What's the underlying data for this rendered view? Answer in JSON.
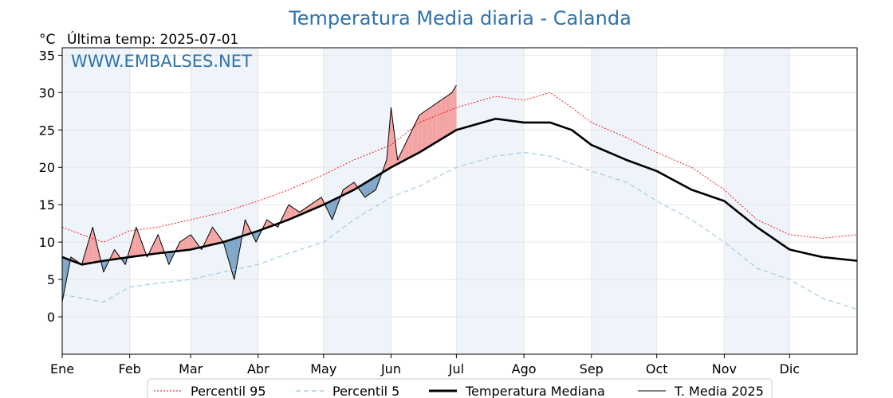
{
  "chart_data": {
    "type": "line",
    "title": "Temperatura Media diaria - Calanda",
    "unit_label": "°C",
    "last_temp_label": "Última temp: 2025-07-01",
    "watermark": "WWW.EMBALSES.NET",
    "ylim": [
      -5,
      36
    ],
    "yticks": [
      "35",
      "30",
      "25",
      "20",
      "15",
      "10",
      "5",
      "0"
    ],
    "yvalues": [
      35,
      30,
      25,
      20,
      15,
      10,
      5,
      0
    ],
    "xlim": [
      1,
      366
    ],
    "month_labels": [
      "Ene",
      "Feb",
      "Mar",
      "Abr",
      "May",
      "Jun",
      "Jul",
      "Ago",
      "Sep",
      "Oct",
      "Nov",
      "Dic"
    ],
    "month_starts": [
      1,
      32,
      60,
      91,
      121,
      152,
      182,
      213,
      244,
      274,
      305,
      335
    ],
    "grid": true,
    "legend_position": "bottom",
    "colors": {
      "p95": "#ff0000",
      "p5": "#a6d1e3",
      "median": "#000000",
      "current": "#000000",
      "warm_fill": "#f4a3a3",
      "cool_fill": "#7fa6c8",
      "shade": "#eef4fa"
    },
    "series": [
      {
        "name": "Percentil 95",
        "style": "dotted",
        "x": [
          1,
          10,
          20,
          32,
          45,
          60,
          75,
          91,
          105,
          121,
          135,
          152,
          165,
          182,
          200,
          213,
          225,
          235,
          244,
          260,
          274,
          290,
          305,
          320,
          335,
          350,
          366
        ],
        "values": [
          12,
          11,
          10,
          11.5,
          12,
          13,
          14,
          15.5,
          17,
          19,
          21,
          23,
          26,
          28,
          29.5,
          29,
          30,
          28,
          26,
          24,
          22,
          20,
          17,
          13,
          11,
          10.5,
          11
        ]
      },
      {
        "name": "Percentil 5",
        "style": "dashed",
        "x": [
          1,
          10,
          20,
          32,
          45,
          60,
          75,
          91,
          105,
          121,
          135,
          152,
          165,
          182,
          200,
          213,
          225,
          235,
          244,
          260,
          274,
          290,
          305,
          320,
          335,
          350,
          366
        ],
        "values": [
          3,
          2.5,
          2,
          4,
          4.5,
          5,
          6,
          7,
          8.5,
          10,
          13,
          16,
          17.5,
          20,
          21.5,
          22,
          21.5,
          20.5,
          19.5,
          18,
          15.5,
          13,
          10,
          6.5,
          5,
          2.5,
          1
        ]
      },
      {
        "name": "Temperatura Mediana",
        "style": "solid-thick",
        "x": [
          1,
          10,
          20,
          32,
          45,
          60,
          75,
          91,
          105,
          121,
          135,
          152,
          165,
          182,
          200,
          213,
          225,
          235,
          244,
          260,
          274,
          290,
          305,
          320,
          335,
          350,
          366
        ],
        "values": [
          8,
          7,
          7.5,
          8,
          8.5,
          9,
          10,
          11.5,
          13,
          15,
          17,
          20,
          22,
          25,
          26.5,
          26,
          26,
          25,
          23,
          21,
          19.5,
          17,
          15.5,
          12,
          9,
          8,
          7.5
        ]
      },
      {
        "name": "T. Media 2025",
        "style": "solid",
        "x": [
          1,
          5,
          10,
          15,
          20,
          25,
          30,
          35,
          40,
          45,
          50,
          55,
          60,
          65,
          70,
          75,
          80,
          85,
          90,
          95,
          100,
          105,
          110,
          115,
          120,
          125,
          130,
          135,
          140,
          145,
          150,
          152,
          155,
          160,
          165,
          170,
          175,
          180,
          182
        ],
        "values": [
          2,
          8,
          7,
          12,
          6,
          9,
          7,
          12,
          8,
          11,
          7,
          10,
          11,
          9,
          12,
          10,
          5,
          13,
          10,
          13,
          12,
          15,
          14,
          15,
          16,
          13,
          17,
          18,
          16,
          17,
          21,
          28,
          21,
          24,
          27,
          28,
          29,
          30,
          31
        ]
      }
    ]
  }
}
